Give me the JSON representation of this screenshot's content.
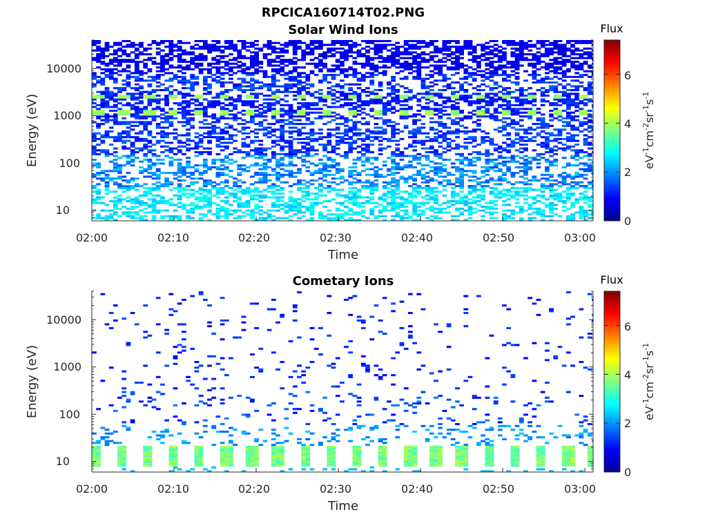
{
  "figure": {
    "filename": "RPCICA160714T02.PNG"
  },
  "chart_data": [
    {
      "type": "heatmap",
      "title": "Solar Wind Ions",
      "xlabel": "Time",
      "ylabel": "Energy (eV)",
      "xticks": [
        "02:00",
        "02:10",
        "02:20",
        "02:30",
        "02:40",
        "02:50",
        "03:00"
      ],
      "xlim": [
        "02:00",
        "03:01"
      ],
      "yscale": "log",
      "yticks": [
        10,
        100,
        1000,
        10000
      ],
      "ylim": [
        6,
        40000
      ],
      "colorbar": {
        "title": "Flux",
        "label": "eV-1cm-2sr-1s-1",
        "range": [
          0,
          7.4
        ],
        "ticks": [
          0,
          2,
          4,
          6
        ],
        "colormap": "jet"
      },
      "pattern": {
        "description_values": "flux in colorbar units",
        "band_energies_eV": [
          1200,
          2600
        ],
        "band_flux": 3.6,
        "band_period_min": 3.1,
        "high_energy_flux": 0.6,
        "mid_energy_flux": 1.4,
        "low_energy_flux": 2.3
      }
    },
    {
      "type": "heatmap",
      "title": "Cometary Ions",
      "xlabel": "Time",
      "ylabel": "Energy (eV)",
      "xticks": [
        "02:00",
        "02:10",
        "02:20",
        "02:30",
        "02:40",
        "02:50",
        "03:00"
      ],
      "xlim": [
        "02:00",
        "03:01"
      ],
      "yscale": "log",
      "yticks": [
        10,
        100,
        1000,
        10000
      ],
      "ylim": [
        6,
        40000
      ],
      "colorbar": {
        "title": "Flux",
        "label": "eV-1cm-2sr-1s-1",
        "range": [
          0,
          7.4
        ],
        "ticks": [
          0,
          2,
          4,
          6
        ],
        "colormap": "jet"
      },
      "pattern": {
        "description_values": "flux in colorbar units",
        "low_energy_band_eV": [
          8,
          22
        ],
        "low_energy_band_flux": 3.2,
        "band_period_min": 3.2,
        "sparse_flux": 0.9
      }
    }
  ]
}
